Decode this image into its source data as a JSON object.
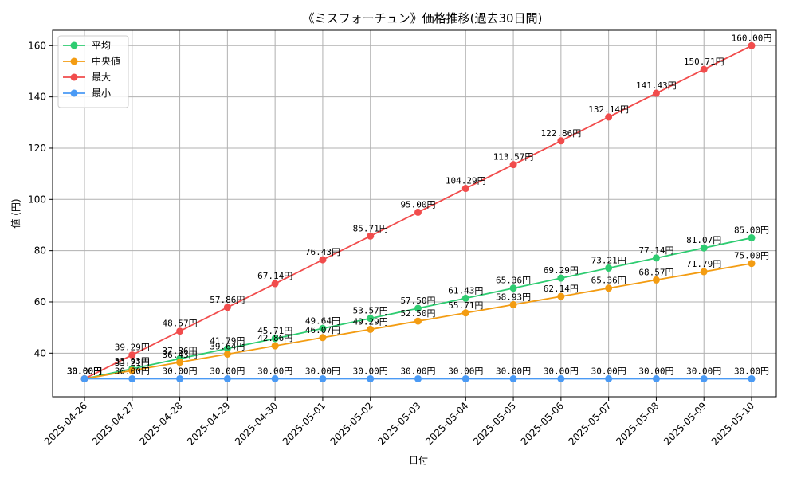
{
  "chart_data": {
    "type": "line",
    "title": "《ミスフォーチュン》価格推移(過去30日間)",
    "xlabel": "日付",
    "ylabel": "値 (円)",
    "ylim": [
      23,
      166
    ],
    "yticks": [
      40,
      60,
      80,
      100,
      120,
      140,
      160
    ],
    "grid": true,
    "legend_position": "top-left",
    "categories": [
      "2025-04-26",
      "2025-04-27",
      "2025-04-28",
      "2025-04-29",
      "2025-04-30",
      "2025-05-01",
      "2025-05-02",
      "2025-05-03",
      "2025-05-04",
      "2025-05-05",
      "2025-05-06",
      "2025-05-07",
      "2025-05-08",
      "2025-05-09",
      "2025-05-10"
    ],
    "series": [
      {
        "name": "平均",
        "color": "#2ecc71",
        "values": [
          30.0,
          33.93,
          37.86,
          41.79,
          45.71,
          49.64,
          53.57,
          57.5,
          61.43,
          65.36,
          69.29,
          73.21,
          77.14,
          81.07,
          85.0
        ],
        "labels": [
          "30.00円",
          "33.93円",
          "37.86円",
          "41.79円",
          "45.71円",
          "49.64円",
          "53.57円",
          "57.50円",
          "61.43円",
          "65.36円",
          "69.29円",
          "73.21円",
          "77.14円",
          "81.07円",
          "85.00円"
        ]
      },
      {
        "name": "中央値",
        "color": "#f39c12",
        "values": [
          30.0,
          33.21,
          36.43,
          39.64,
          42.86,
          46.07,
          49.29,
          52.5,
          55.71,
          58.93,
          62.14,
          65.36,
          68.57,
          71.79,
          75.0
        ],
        "labels": [
          "30.00円",
          "33.21円",
          "36.43円",
          "39.64円",
          "42.86円",
          "46.07円",
          "49.29円",
          "52.50円",
          "55.71円",
          "58.93円",
          "62.14円",
          "65.36円",
          "68.57円",
          "71.79円",
          "75.00円"
        ]
      },
      {
        "name": "最大",
        "color": "#f14c4c",
        "values": [
          30.0,
          39.29,
          48.57,
          57.86,
          67.14,
          76.43,
          85.71,
          95.0,
          104.29,
          113.57,
          122.86,
          132.14,
          141.43,
          150.71,
          160.0
        ],
        "labels": [
          "30.00円",
          "39.29円",
          "48.57円",
          "57.86円",
          "67.14円",
          "76.43円",
          "85.71円",
          "95.00円",
          "104.29円",
          "113.57円",
          "122.86円",
          "132.14円",
          "141.43円",
          "150.71円",
          "160.00円"
        ]
      },
      {
        "name": "最小",
        "color": "#4a9af5",
        "values": [
          30.0,
          30.0,
          30.0,
          30.0,
          30.0,
          30.0,
          30.0,
          30.0,
          30.0,
          30.0,
          30.0,
          30.0,
          30.0,
          30.0,
          30.0
        ],
        "labels": [
          "30.00円",
          "30.00円",
          "30.00円",
          "30.00円",
          "30.00円",
          "30.00円",
          "30.00円",
          "30.00円",
          "30.00円",
          "30.00円",
          "30.00円",
          "30.00円",
          "30.00円",
          "30.00円",
          "30.00円"
        ]
      }
    ]
  }
}
